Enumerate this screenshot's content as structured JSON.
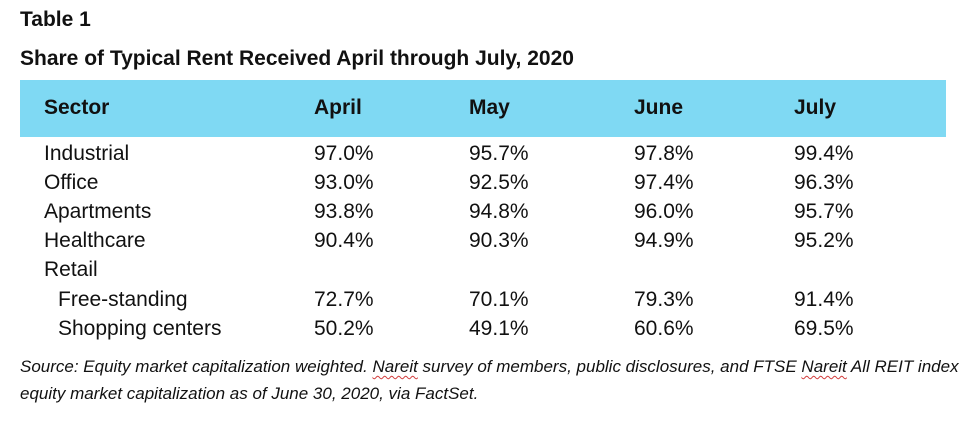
{
  "table_label": "Table 1",
  "title": "Share of Typical Rent Received April through July, 2020",
  "header": [
    "Sector",
    "April",
    "May",
    "June",
    "July"
  ],
  "rows": [
    {
      "sector": "Industrial",
      "april": "97.0%",
      "may": "95.7%",
      "june": "97.8%",
      "july": "99.4%"
    },
    {
      "sector": "Office",
      "april": "93.0%",
      "may": "92.5%",
      "june": "97.4%",
      "july": "96.3%"
    },
    {
      "sector": "Apartments",
      "april": "93.8%",
      "may": "94.8%",
      "june": "96.0%",
      "july": "95.7%"
    },
    {
      "sector": "Healthcare",
      "april": "90.4%",
      "may": "90.3%",
      "june": "94.9%",
      "july": "95.2%"
    },
    {
      "sector": "Retail",
      "april": "",
      "may": "",
      "june": "",
      "july": ""
    },
    {
      "sector": "Free-standing",
      "april": "72.7%",
      "may": "70.1%",
      "june": "79.3%",
      "july": "91.4%"
    },
    {
      "sector": "Shopping centers",
      "april": "50.2%",
      "may": "49.1%",
      "june": "60.6%",
      "july": "69.5%"
    }
  ],
  "source": {
    "part1": "Source: Equity market capitalization weighted. ",
    "nareit1": "Nareit",
    "part2": " survey of members, public disclosures, and FTSE ",
    "nareit2": "Nareit",
    "part3": " All REIT index equity market capitalization as of June 30, 2020, via FactSet."
  },
  "colors": {
    "header_band": "#7fd9f3"
  }
}
